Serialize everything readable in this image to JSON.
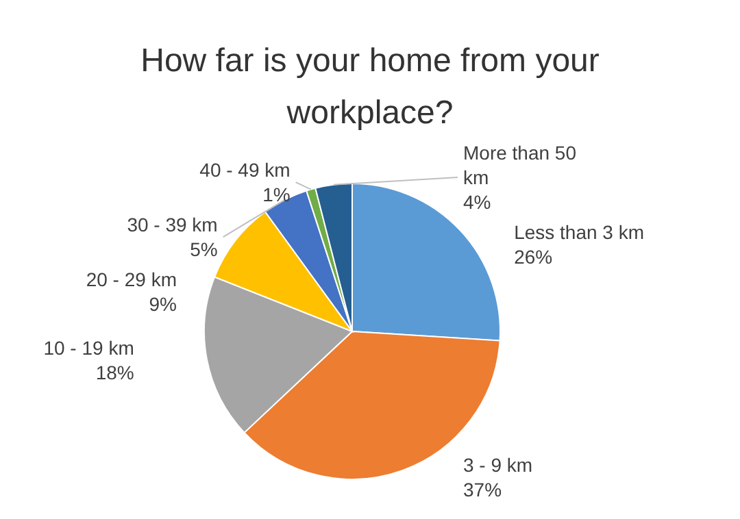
{
  "chart_data": {
    "type": "pie",
    "title": "How far is your home from your workplace?",
    "categories": [
      "Less than 3 km",
      "3 - 9 km",
      "10 - 19 km",
      "20 - 29 km",
      "30 - 39 km",
      "40 - 49 km",
      "More than 50 km"
    ],
    "values": [
      26,
      37,
      18,
      9,
      5,
      1,
      4
    ],
    "colors": [
      "#5b9bd5",
      "#ed7d31",
      "#a5a5a5",
      "#ffc000",
      "#4472c4",
      "#70ad47",
      "#255e91"
    ],
    "value_labels": [
      "26%",
      "37%",
      "18%",
      "9%",
      "5%",
      "1%",
      "4%"
    ]
  }
}
